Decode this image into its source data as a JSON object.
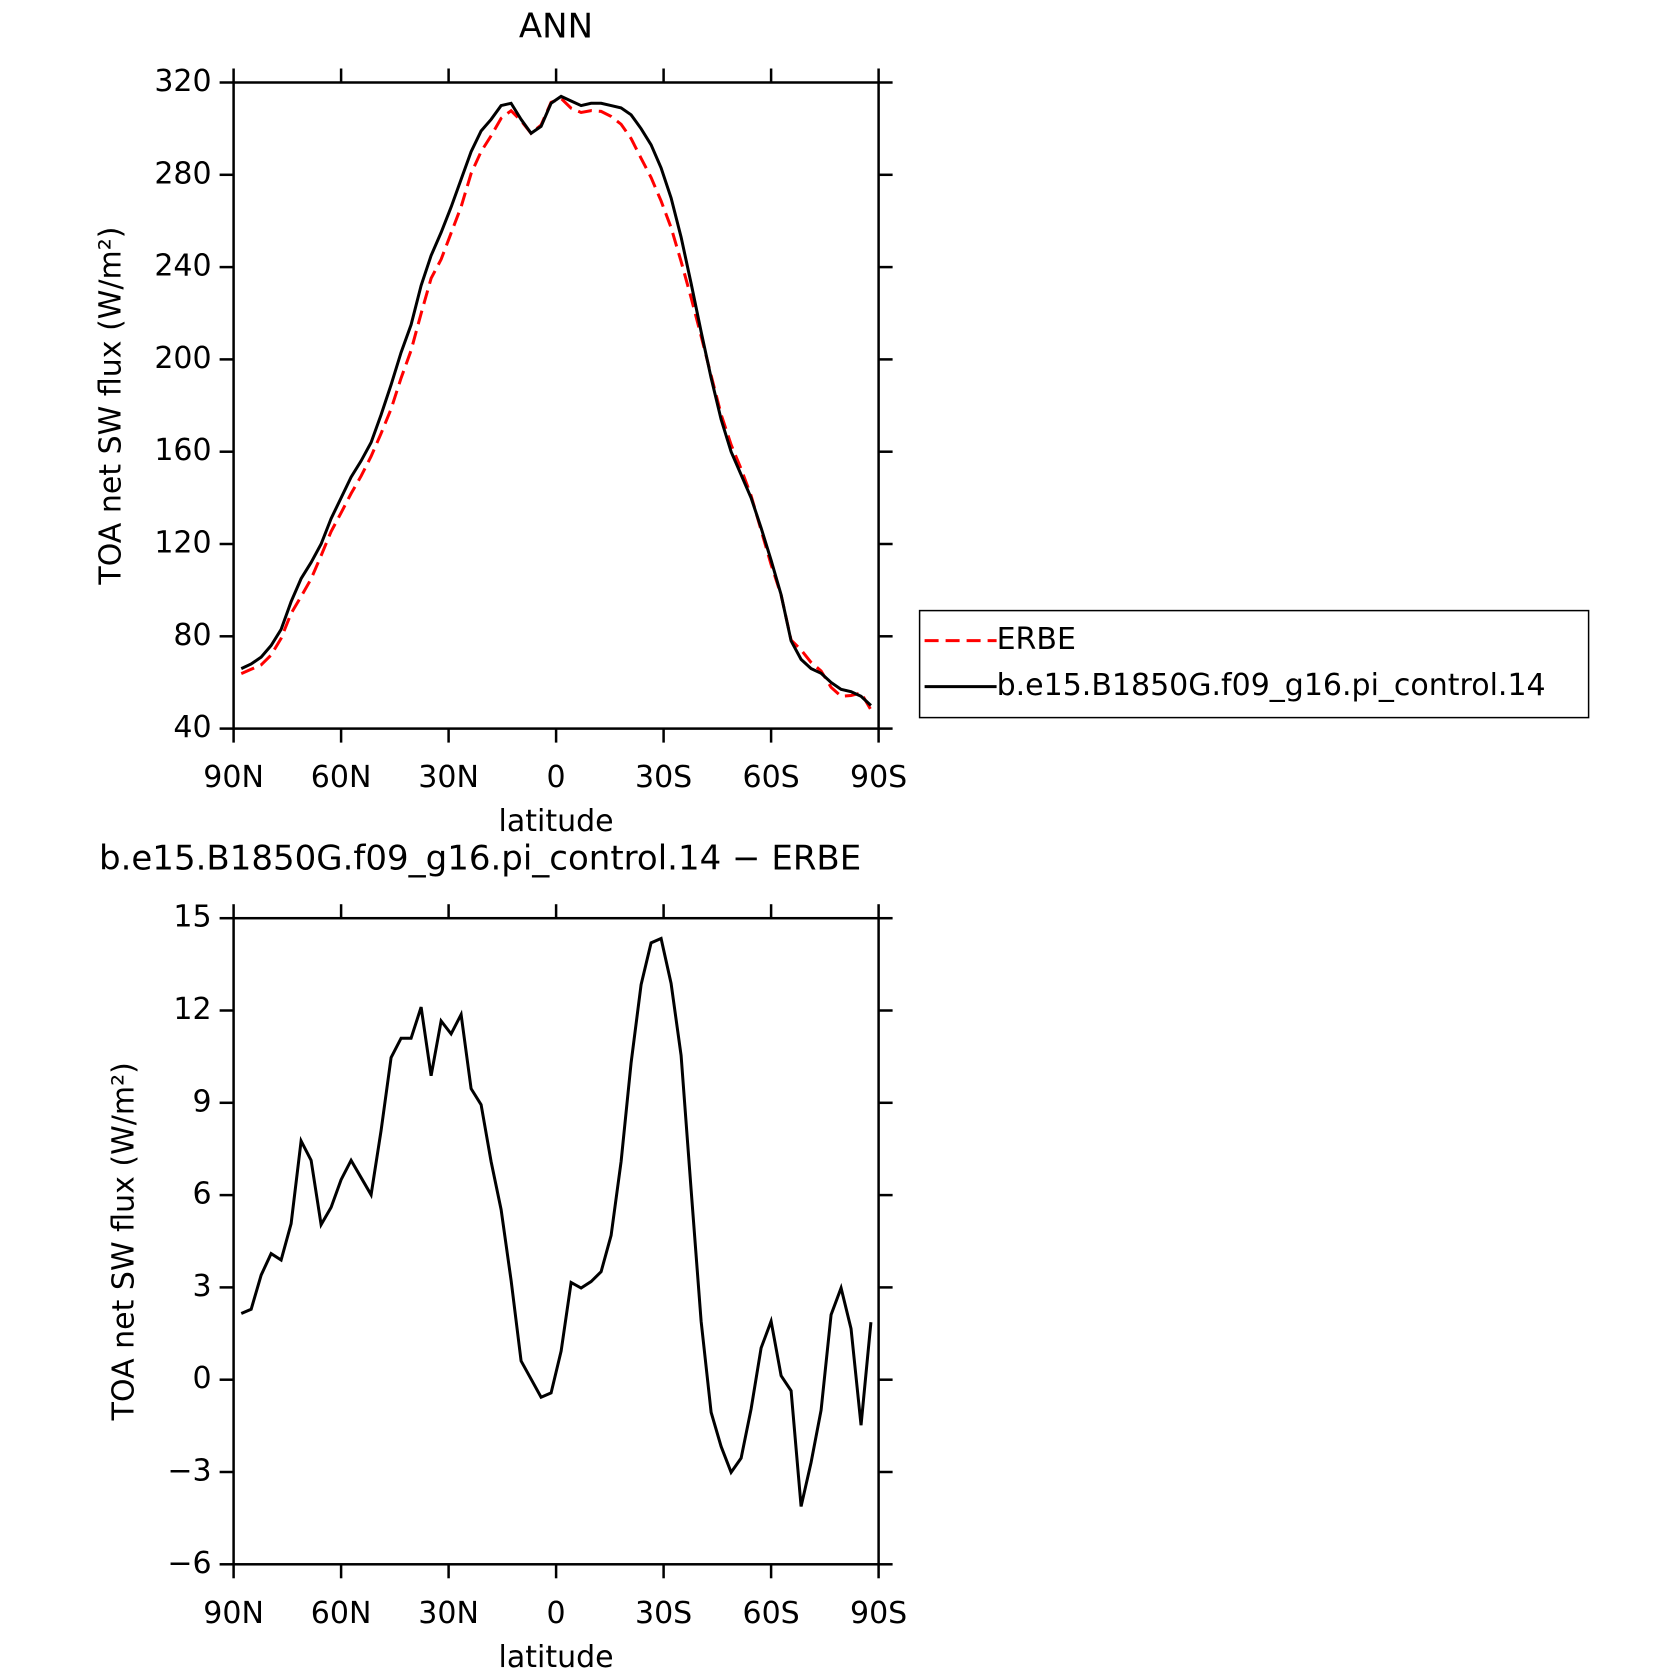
{
  "chart_data": [
    {
      "type": "line",
      "title": "ANN",
      "xlabel": "latitude",
      "ylabel": "TOA net SW flux (W/m²)",
      "x": [
        87.86,
        85.1,
        82.31,
        79.53,
        76.74,
        73.95,
        71.16,
        68.37,
        65.58,
        62.79,
        60.0,
        57.21,
        54.42,
        51.63,
        48.84,
        46.05,
        43.26,
        40.47,
        37.67,
        34.88,
        32.09,
        29.3,
        26.51,
        23.72,
        20.93,
        18.14,
        15.35,
        12.56,
        9.77,
        6.98,
        4.19,
        1.4,
        -1.4,
        -4.19,
        -6.98,
        -9.77,
        -12.56,
        -15.35,
        -18.14,
        -20.93,
        -23.72,
        -26.51,
        -29.3,
        -32.09,
        -34.88,
        -37.67,
        -40.47,
        -43.26,
        -46.05,
        -48.84,
        -51.63,
        -54.42,
        -57.21,
        -60.0,
        -62.79,
        -65.58,
        -68.37,
        -71.16,
        -73.95,
        -76.74,
        -79.53,
        -82.31,
        -85.1,
        -87.86
      ],
      "xlim": [
        90,
        -90
      ],
      "xticks": [
        {
          "value": 90,
          "label": "90N"
        },
        {
          "value": 60,
          "label": "60N"
        },
        {
          "value": 30,
          "label": "30N"
        },
        0,
        {
          "value": -30,
          "label": "30S"
        },
        {
          "value": -60,
          "label": "60S"
        },
        {
          "value": -90,
          "label": "90S"
        }
      ],
      "ylim": [
        40,
        320
      ],
      "yticks": [
        40,
        80,
        120,
        160,
        200,
        240,
        280,
        320
      ],
      "legend": "right",
      "series": [
        {
          "name": "ERBE",
          "color": "#ff0000",
          "line_style": "dashed",
          "values": [
            63.85,
            65.71,
            67.6,
            71.9,
            79.11,
            89.93,
            97.24,
            104.87,
            114.96,
            125.4,
            133.5,
            141.87,
            149.43,
            157.99,
            167.9,
            178.53,
            191.9,
            203.9,
            219.89,
            235.12,
            243.34,
            254.76,
            266.13,
            280.54,
            290.06,
            296.91,
            304.47,
            307.77,
            303.39,
            297.98,
            301.57,
            311.43,
            313.07,
            308.84,
            307.02,
            307.81,
            307.49,
            305.31,
            301.91,
            295.7,
            287.16,
            278.8,
            268.66,
            257.12,
            242.46,
            226.81,
            210.1,
            193.06,
            176.17,
            163.01,
            152.55,
            140.95,
            125.97,
            111.1,
            97.87,
            78.36,
            74.12,
            68.69,
            64.99,
            57.89,
            54.02,
            54.34,
            55.48,
            48.13
          ]
        },
        {
          "name": "b.e15.B1850G.f09_g16.pi_control.14",
          "color": "#000000",
          "line_style": "solid",
          "values": [
            66,
            68,
            71,
            76,
            83,
            95,
            105,
            112,
            120,
            131,
            140,
            149,
            156,
            164,
            176,
            189,
            203,
            215,
            232,
            245,
            255,
            266,
            278,
            290,
            299,
            304,
            310,
            311,
            304,
            298,
            301,
            311,
            314,
            312,
            310,
            311,
            311,
            310,
            309,
            306,
            300,
            293,
            283,
            270,
            253,
            233,
            212,
            192,
            174,
            160,
            150,
            140,
            127,
            113,
            98,
            78,
            70,
            66,
            64,
            60,
            57,
            56,
            54,
            50
          ]
        }
      ]
    },
    {
      "type": "line",
      "title": "b.e15.B1850G.f09_g16.pi_control.14 − ERBE",
      "xlabel": "latitude",
      "ylabel": "TOA net SW flux (W/m²)",
      "x": [
        87.86,
        85.1,
        82.31,
        79.53,
        76.74,
        73.95,
        71.16,
        68.37,
        65.58,
        62.79,
        60.0,
        57.21,
        54.42,
        51.63,
        48.84,
        46.05,
        43.26,
        40.47,
        37.67,
        34.88,
        32.09,
        29.3,
        26.51,
        23.72,
        20.93,
        18.14,
        15.35,
        12.56,
        9.77,
        6.98,
        4.19,
        1.4,
        -1.4,
        -4.19,
        -6.98,
        -9.77,
        -12.56,
        -15.35,
        -18.14,
        -20.93,
        -23.72,
        -26.51,
        -29.3,
        -32.09,
        -34.88,
        -37.67,
        -40.47,
        -43.26,
        -46.05,
        -48.84,
        -51.63,
        -54.42,
        -57.21,
        -60.0,
        -62.79,
        -65.58,
        -68.37,
        -71.16,
        -73.95,
        -76.74,
        -79.53,
        -82.31,
        -85.1,
        -87.86
      ],
      "xlim": [
        90,
        -90
      ],
      "xticks": [
        {
          "value": 90,
          "label": "90N"
        },
        {
          "value": 60,
          "label": "60N"
        },
        {
          "value": 30,
          "label": "30N"
        },
        0,
        {
          "value": -30,
          "label": "30S"
        },
        {
          "value": -60,
          "label": "60S"
        },
        {
          "value": -90,
          "label": "90S"
        }
      ],
      "ylim": [
        -6,
        15
      ],
      "yticks": [
        {
          "value": -6,
          "label": "−6"
        },
        {
          "value": -3,
          "label": "−3"
        },
        0,
        3,
        6,
        9,
        12,
        15
      ],
      "series": [
        {
          "color": "#000000",
          "line_style": "solid",
          "values": [
            2.15,
            2.29,
            3.4,
            4.1,
            3.89,
            5.07,
            7.76,
            7.13,
            5.04,
            5.6,
            6.5,
            7.13,
            6.57,
            6.01,
            8.1,
            10.47,
            11.1,
            11.1,
            12.11,
            9.88,
            11.66,
            11.24,
            11.87,
            9.46,
            8.94,
            7.09,
            5.53,
            3.23,
            0.61,
            0.02,
            -0.57,
            -0.43,
            0.93,
            3.16,
            2.98,
            3.19,
            3.51,
            4.69,
            7.09,
            10.3,
            12.84,
            14.2,
            14.34,
            12.88,
            10.54,
            6.19,
            1.9,
            -1.06,
            -2.17,
            -3.01,
            -2.55,
            -0.95,
            1.03,
            1.9,
            0.13,
            -0.36,
            -4.12,
            -2.69,
            -0.99,
            2.11,
            2.98,
            1.66,
            -1.48,
            1.87
          ]
        }
      ]
    }
  ]
}
